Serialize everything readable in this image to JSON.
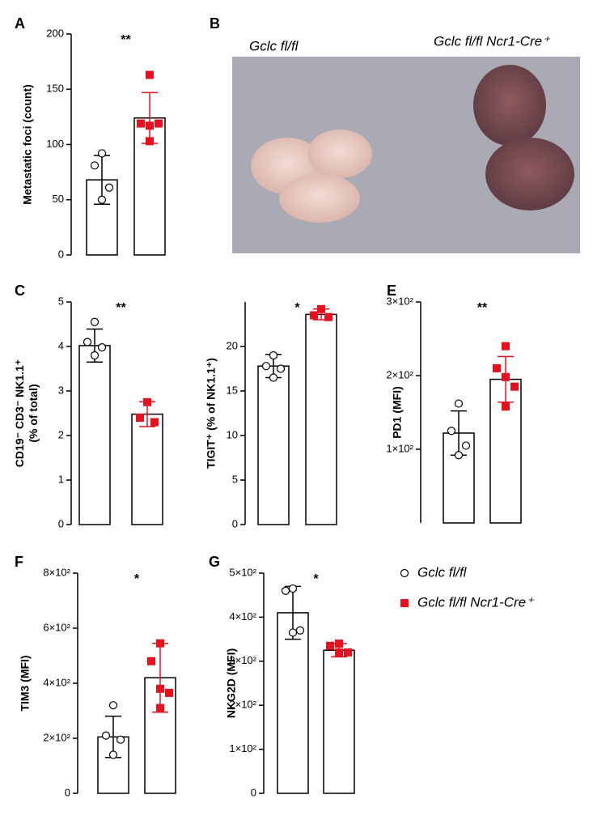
{
  "legend": [
    {
      "name": "Gclc fl/fl",
      "color": "#ffffff",
      "marker": "circle"
    },
    {
      "name": "Gclc fl/fl Ncr1-Cre⁺",
      "color": "#e8101e",
      "marker": "square"
    }
  ],
  "photo": {
    "panel": "B",
    "labels": [
      "Gclc fl/fl",
      "Gclc fl/fl Ncr1-Cre⁺"
    ]
  },
  "chart_data": [
    {
      "type": "bar",
      "panel": "A",
      "ylabel": [
        "Metastatic foci (count)"
      ],
      "significance": "**",
      "ylim": [
        0,
        200
      ],
      "yticks": [
        0,
        50,
        100,
        150,
        200
      ],
      "series": [
        {
          "color": "#ffffff",
          "marker": "circle",
          "values": [
            68
          ],
          "errors": [
            22
          ],
          "points": [
            92,
            81,
            61,
            50
          ]
        },
        {
          "color": "#e8101e",
          "marker": "square",
          "values": [
            124
          ],
          "errors": [
            23
          ],
          "points": [
            163,
            119,
            117,
            119,
            103
          ]
        }
      ]
    },
    {
      "type": "bar",
      "panel": "C",
      "ylabel": [
        "CD19⁻ CD3⁻ NK1.1⁺",
        "(% of total)"
      ],
      "significance": "**",
      "ylim": [
        0,
        5
      ],
      "yticks": [
        0,
        1,
        2,
        3,
        4,
        5
      ],
      "series": [
        {
          "color": "#ffffff",
          "marker": "circle",
          "values": [
            4.02
          ],
          "errors": [
            0.37
          ],
          "points": [
            4.55,
            4.1,
            3.98,
            3.8
          ]
        },
        {
          "color": "#e8101e",
          "marker": "square",
          "values": [
            2.48
          ],
          "errors": [
            0.28
          ],
          "points": [
            2.75,
            2.4,
            2.3
          ]
        }
      ]
    },
    {
      "type": "bar",
      "ylabel": [
        "TIGIT⁺ (% of NK1.1⁺)"
      ],
      "significance": "*",
      "ylim": [
        0,
        25
      ],
      "yticks": [
        0,
        5,
        10,
        15,
        20
      ],
      "series": [
        {
          "color": "#ffffff",
          "marker": "circle",
          "values": [
            17.8
          ],
          "errors": [
            1.3
          ],
          "points": [
            19.0,
            17.8,
            17.5,
            16.5
          ]
        },
        {
          "color": "#e8101e",
          "marker": "square",
          "values": [
            23.6
          ],
          "errors": [
            0.6
          ],
          "points": [
            24.2,
            23.5,
            23.3
          ]
        }
      ]
    },
    {
      "type": "bar",
      "panel": "E",
      "ylabel": [
        "PD1 (MFI)"
      ],
      "significance": "**",
      "ylim": [
        0,
        300
      ],
      "yticks": [
        {
          "value": 100,
          "label": "1×10²"
        },
        {
          "value": 200,
          "label": "2×10²"
        },
        {
          "value": 300,
          "label": "3×10²"
        }
      ],
      "series": [
        {
          "color": "#ffffff",
          "marker": "circle",
          "values": [
            122
          ],
          "errors": [
            30
          ],
          "points": [
            162,
            125,
            105,
            92
          ]
        },
        {
          "color": "#e8101e",
          "marker": "square",
          "values": [
            195
          ],
          "errors": [
            31
          ],
          "points": [
            240,
            210,
            198,
            185,
            158
          ]
        }
      ]
    },
    {
      "type": "bar",
      "panel": "F",
      "ylabel": [
        "TIM3 (MFI)"
      ],
      "significance": "*",
      "ylim": [
        0,
        800
      ],
      "yticks": [
        0,
        {
          "value": 200,
          "label": "2×10²"
        },
        {
          "value": 400,
          "label": "4×10²"
        },
        {
          "value": 600,
          "label": "6×10²"
        },
        {
          "value": 800,
          "label": "8×10²"
        }
      ],
      "series": [
        {
          "color": "#ffffff",
          "marker": "circle",
          "values": [
            205
          ],
          "errors": [
            75
          ],
          "points": [
            320,
            210,
            195,
            140
          ]
        },
        {
          "color": "#e8101e",
          "marker": "square",
          "values": [
            420
          ],
          "errors": [
            125
          ],
          "points": [
            545,
            480,
            380,
            365,
            310
          ]
        }
      ]
    },
    {
      "type": "bar",
      "panel": "G",
      "ylabel": [
        "NKG2D (MFI)"
      ],
      "significance": "*",
      "ylim": [
        0,
        500
      ],
      "yticks": [
        0,
        {
          "value": 100,
          "label": "1×10²"
        },
        {
          "value": 200,
          "label": "2×10²"
        },
        {
          "value": 300,
          "label": "3×10²"
        },
        {
          "value": 400,
          "label": "4×10²"
        },
        {
          "value": 500,
          "label": "5×10²"
        }
      ],
      "series": [
        {
          "color": "#ffffff",
          "marker": "circle",
          "values": [
            410
          ],
          "errors": [
            60
          ],
          "points": [
            465,
            460,
            370,
            365
          ]
        },
        {
          "color": "#e8101e",
          "marker": "square",
          "values": [
            325
          ],
          "errors": [
            15
          ],
          "points": [
            340,
            335,
            320,
            320,
            318
          ]
        }
      ]
    }
  ]
}
